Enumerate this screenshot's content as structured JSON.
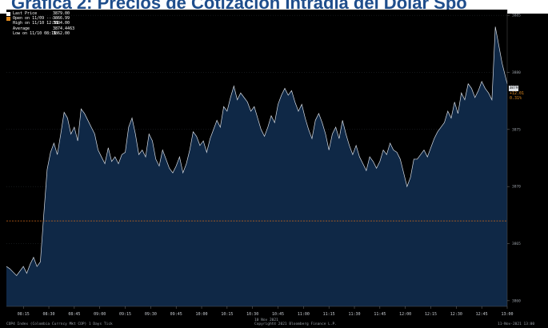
{
  "title": "Grafica 2: Precios de Cotización Intradía del Dolar Spo",
  "legend": [
    {
      "label": "Last Price",
      "value": "3879.00",
      "color": "#ffffff"
    },
    {
      "label": "Open on 11/09 ----",
      "value": "3866.99",
      "color": "#e08a1e"
    },
    {
      "label": "High on 11/10 12:51",
      "value": "3884.00",
      "color": "#000000"
    },
    {
      "label": "Average",
      "value": "3874.4463",
      "color": "#000000"
    },
    {
      "label": "Low on 11/10 08:11",
      "value": "3862.00",
      "color": "#000000"
    }
  ],
  "annotation": {
    "change": "+12.01",
    "pct": "0.31%"
  },
  "last_price_label": "3879",
  "footer": {
    "left": "COP4 Index (Colombia Currncy Mkt COP) 1 Days  Tick",
    "center_date": "10 Nov 2021",
    "center_copy": "Copyright© 2021 Bloomberg Finance L.P.",
    "right": "11-Nov-2021 13:00"
  },
  "colors": {
    "area": "#0f2846",
    "line": "#d7dde5",
    "open_line": "#d06a1a",
    "grid": "#2a2f36"
  },
  "chart_data": {
    "type": "area",
    "title": "Grafica 2: Precios de Cotización Intradía del Dolar Spo",
    "xlabel": "10 Nov 2021",
    "ylabel": "",
    "x_ticks": [
      "08:15",
      "08:30",
      "08:45",
      "09:00",
      "09:15",
      "09:30",
      "09:45",
      "10:00",
      "10:15",
      "10:30",
      "10:45",
      "11:00",
      "11:15",
      "11:30",
      "11:45",
      "12:00",
      "12:15",
      "12:30",
      "12:45",
      "13:00"
    ],
    "y_ticks": [
      "3885",
      "3880",
      "3875",
      "3870",
      "3865",
      "3860"
    ],
    "ylim": [
      3859.5,
      3885.5
    ],
    "open_value": 3866.99,
    "series": [
      {
        "name": "Last Price",
        "x": [
          "08:05",
          "08:07",
          "08:09",
          "08:11",
          "08:13",
          "08:15",
          "08:17",
          "08:19",
          "08:21",
          "08:23",
          "08:25",
          "08:27",
          "08:29",
          "08:31",
          "08:33",
          "08:35",
          "08:37",
          "08:39",
          "08:41",
          "08:43",
          "08:45",
          "08:47",
          "08:49",
          "08:51",
          "08:53",
          "08:55",
          "08:57",
          "08:59",
          "09:01",
          "09:03",
          "09:05",
          "09:07",
          "09:09",
          "09:11",
          "09:13",
          "09:15",
          "09:17",
          "09:19",
          "09:21",
          "09:23",
          "09:25",
          "09:27",
          "09:29",
          "09:31",
          "09:33",
          "09:35",
          "09:37",
          "09:39",
          "09:41",
          "09:43",
          "09:45",
          "09:47",
          "09:49",
          "09:51",
          "09:53",
          "09:55",
          "09:57",
          "09:59",
          "10:01",
          "10:03",
          "10:05",
          "10:07",
          "10:09",
          "10:11",
          "10:13",
          "10:15",
          "10:17",
          "10:19",
          "10:21",
          "10:23",
          "10:25",
          "10:27",
          "10:29",
          "10:31",
          "10:33",
          "10:35",
          "10:37",
          "10:39",
          "10:41",
          "10:43",
          "10:45",
          "10:47",
          "10:49",
          "10:51",
          "10:53",
          "10:55",
          "10:57",
          "10:59",
          "11:01",
          "11:03",
          "11:05",
          "11:07",
          "11:09",
          "11:11",
          "11:13",
          "11:15",
          "11:17",
          "11:19",
          "11:21",
          "11:23",
          "11:25",
          "11:27",
          "11:29",
          "11:31",
          "11:33",
          "11:35",
          "11:37",
          "11:39",
          "11:41",
          "11:43",
          "11:45",
          "11:47",
          "11:49",
          "11:51",
          "11:53",
          "11:55",
          "11:57",
          "11:59",
          "12:01",
          "12:03",
          "12:05",
          "12:07",
          "12:09",
          "12:11",
          "12:13",
          "12:15",
          "12:17",
          "12:19",
          "12:21",
          "12:23",
          "12:25",
          "12:27",
          "12:29",
          "12:31",
          "12:33",
          "12:35",
          "12:37",
          "12:39",
          "12:41",
          "12:43",
          "12:45",
          "12:47",
          "12:49",
          "12:51",
          "12:53",
          "12:55",
          "12:57",
          "12:59",
          "13:00"
        ],
        "values": [
          3863.0,
          3862.8,
          3862.5,
          3862.2,
          3862.6,
          3863.0,
          3862.4,
          3863.2,
          3863.8,
          3863.0,
          3863.4,
          3867.5,
          3871.5,
          3873.0,
          3873.8,
          3872.8,
          3874.6,
          3876.5,
          3876.0,
          3874.6,
          3875.2,
          3874.0,
          3876.8,
          3876.4,
          3875.8,
          3875.2,
          3874.6,
          3873.2,
          3872.6,
          3872.0,
          3873.4,
          3872.2,
          3872.6,
          3872.0,
          3872.8,
          3873.0,
          3875.2,
          3876.0,
          3874.6,
          3872.8,
          3873.2,
          3872.6,
          3874.6,
          3874.0,
          3872.4,
          3871.8,
          3873.2,
          3872.4,
          3871.6,
          3871.2,
          3871.8,
          3872.6,
          3871.2,
          3872.0,
          3873.2,
          3874.8,
          3874.4,
          3873.6,
          3874.0,
          3873.0,
          3874.2,
          3875.0,
          3875.8,
          3875.2,
          3877.0,
          3876.6,
          3877.8,
          3878.8,
          3877.6,
          3878.2,
          3877.8,
          3877.4,
          3876.6,
          3877.0,
          3876.0,
          3875.0,
          3874.4,
          3875.2,
          3876.2,
          3875.6,
          3877.2,
          3878.0,
          3878.6,
          3878.0,
          3878.4,
          3877.4,
          3876.6,
          3877.2,
          3876.0,
          3875.0,
          3874.2,
          3875.8,
          3876.4,
          3875.6,
          3874.6,
          3873.2,
          3874.6,
          3875.2,
          3874.2,
          3875.8,
          3874.6,
          3873.6,
          3872.8,
          3873.6,
          3872.6,
          3872.0,
          3871.4,
          3872.6,
          3872.2,
          3871.6,
          3872.2,
          3873.2,
          3872.8,
          3873.8,
          3873.2,
          3873.0,
          3872.4,
          3871.2,
          3870.0,
          3870.8,
          3872.4,
          3872.4,
          3872.8,
          3873.2,
          3872.6,
          3873.4,
          3874.2,
          3874.8,
          3875.2,
          3875.6,
          3876.6,
          3876.0,
          3877.4,
          3876.4,
          3878.2,
          3877.6,
          3879.0,
          3878.6,
          3877.8,
          3878.4,
          3879.2,
          3878.6,
          3878.2,
          3877.6,
          3884.0,
          3882.4,
          3880.8,
          3879.6,
          3879.0
        ]
      }
    ],
    "grid": true,
    "legend_position": "top-left"
  }
}
